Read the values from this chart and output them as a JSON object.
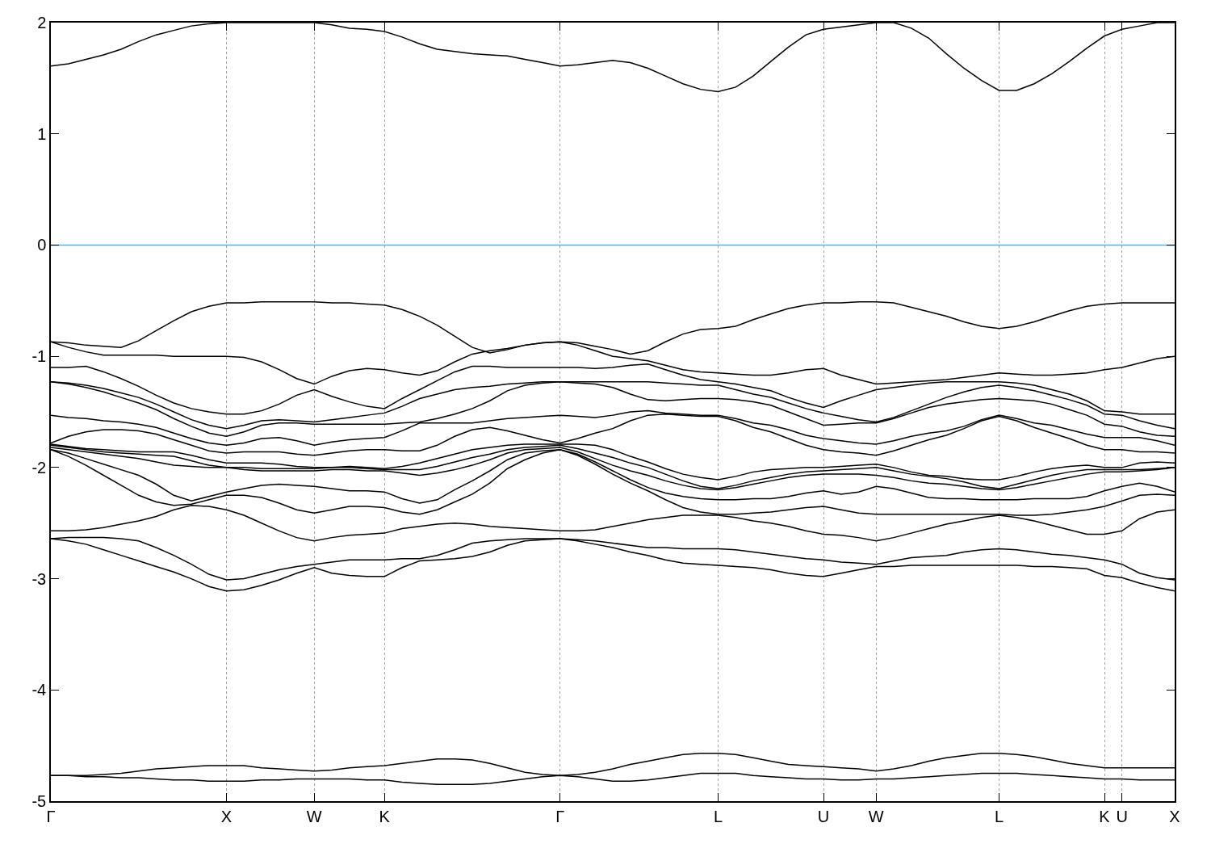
{
  "chart_data": {
    "type": "line",
    "categories": [
      "Γ",
      null,
      null,
      null,
      null,
      null,
      null,
      null,
      null,
      null,
      "X",
      null,
      null,
      null,
      null,
      "W",
      null,
      null,
      null,
      "K",
      null,
      null,
      null,
      null,
      null,
      null,
      null,
      null,
      null,
      "Γ",
      null,
      null,
      null,
      null,
      null,
      null,
      null,
      null,
      "L",
      null,
      null,
      null,
      null,
      null,
      "U",
      null,
      null,
      "W",
      null,
      null,
      null,
      null,
      null,
      null,
      "L",
      null,
      null,
      null,
      null,
      null,
      "K",
      "U",
      null,
      null,
      "X"
    ],
    "ylim": [
      -5,
      2
    ],
    "yticks": [
      -5,
      -4,
      -3,
      -2,
      -1,
      0,
      1,
      2
    ],
    "grid": "x",
    "ref_lines": [
      {
        "axis": "y",
        "value": 0,
        "color": "#56b4e9"
      }
    ],
    "series": [
      {
        "color": "#000000",
        "values": [
          1.61,
          1.63,
          1.67,
          1.71,
          1.76,
          1.83,
          1.89,
          1.93,
          1.97,
          1.99,
          2.0,
          2.0,
          2.0,
          2.0,
          2.0,
          2.0,
          1.98,
          1.95,
          1.94,
          1.92,
          1.87,
          1.81,
          1.76,
          1.74,
          1.72,
          1.71,
          1.7,
          1.67,
          1.64,
          1.61,
          1.62,
          1.64,
          1.66,
          1.64,
          1.59,
          1.52,
          1.45,
          1.4,
          1.38,
          1.42,
          1.52,
          1.65,
          1.78,
          1.89,
          1.94,
          1.96,
          1.98,
          2.0,
          2.0,
          1.95,
          1.86,
          1.72,
          1.59,
          1.48,
          1.39,
          1.39,
          1.45,
          1.54,
          1.65,
          1.77,
          1.88,
          1.94,
          1.97,
          2.0,
          2.0
        ]
      },
      {
        "color": "#000000",
        "values": [
          -0.87,
          -0.88,
          -0.9,
          -0.91,
          -0.92,
          -0.86,
          -0.77,
          -0.68,
          -0.6,
          -0.55,
          -0.52,
          -0.52,
          -0.51,
          -0.51,
          -0.51,
          -0.51,
          -0.52,
          -0.52,
          -0.53,
          -0.54,
          -0.58,
          -0.64,
          -0.72,
          -0.82,
          -0.92,
          -0.97,
          -0.94,
          -0.9,
          -0.88,
          -0.87,
          -0.88,
          -0.91,
          -0.94,
          -0.98,
          -0.95,
          -0.87,
          -0.8,
          -0.76,
          -0.75,
          -0.73,
          -0.67,
          -0.62,
          -0.57,
          -0.54,
          -0.52,
          -0.52,
          -0.51,
          -0.51,
          -0.52,
          -0.56,
          -0.6,
          -0.64,
          -0.69,
          -0.73,
          -0.75,
          -0.73,
          -0.69,
          -0.64,
          -0.59,
          -0.55,
          -0.53,
          -0.52,
          -0.52,
          -0.52,
          -0.52
        ]
      },
      {
        "color": "#000000",
        "values": [
          -0.87,
          -0.92,
          -0.96,
          -0.99,
          -0.99,
          -0.99,
          -0.99,
          -1.0,
          -1.0,
          -1.0,
          -1.0,
          -1.01,
          -1.05,
          -1.12,
          -1.2,
          -1.25,
          -1.18,
          -1.13,
          -1.11,
          -1.12,
          -1.15,
          -1.17,
          -1.13,
          -1.05,
          -0.98,
          -0.95,
          -0.93,
          -0.9,
          -0.88,
          -0.87,
          -0.9,
          -0.95,
          -1.0,
          -1.02,
          -1.04,
          -1.08,
          -1.12,
          -1.14,
          -1.15,
          -1.16,
          -1.17,
          -1.17,
          -1.15,
          -1.12,
          -1.11,
          -1.17,
          -1.21,
          -1.25,
          -1.24,
          -1.23,
          -1.22,
          -1.21,
          -1.19,
          -1.17,
          -1.15,
          -1.16,
          -1.17,
          -1.17,
          -1.16,
          -1.15,
          -1.12,
          -1.1,
          -1.06,
          -1.02,
          -1.0
        ]
      },
      {
        "color": "#000000",
        "values": [
          -1.1,
          -1.1,
          -1.09,
          -1.14,
          -1.2,
          -1.27,
          -1.35,
          -1.42,
          -1.47,
          -1.5,
          -1.52,
          -1.52,
          -1.49,
          -1.43,
          -1.35,
          -1.3,
          -1.36,
          -1.41,
          -1.45,
          -1.47,
          -1.38,
          -1.3,
          -1.22,
          -1.14,
          -1.09,
          -1.09,
          -1.1,
          -1.1,
          -1.1,
          -1.1,
          -1.1,
          -1.11,
          -1.1,
          -1.08,
          -1.07,
          -1.12,
          -1.17,
          -1.21,
          -1.23,
          -1.25,
          -1.28,
          -1.31,
          -1.37,
          -1.42,
          -1.46,
          -1.4,
          -1.35,
          -1.3,
          -1.28,
          -1.26,
          -1.24,
          -1.23,
          -1.23,
          -1.23,
          -1.23,
          -1.24,
          -1.26,
          -1.3,
          -1.34,
          -1.4,
          -1.49,
          -1.5,
          -1.52,
          -1.52,
          -1.52
        ]
      },
      {
        "color": "#000000",
        "values": [
          -1.23,
          -1.24,
          -1.26,
          -1.29,
          -1.33,
          -1.37,
          -1.43,
          -1.5,
          -1.57,
          -1.62,
          -1.65,
          -1.62,
          -1.58,
          -1.57,
          -1.58,
          -1.59,
          -1.57,
          -1.55,
          -1.53,
          -1.51,
          -1.45,
          -1.38,
          -1.34,
          -1.3,
          -1.28,
          -1.27,
          -1.25,
          -1.24,
          -1.23,
          -1.23,
          -1.23,
          -1.23,
          -1.23,
          -1.23,
          -1.23,
          -1.24,
          -1.25,
          -1.26,
          -1.26,
          -1.3,
          -1.34,
          -1.37,
          -1.42,
          -1.47,
          -1.51,
          -1.54,
          -1.57,
          -1.59,
          -1.55,
          -1.49,
          -1.43,
          -1.37,
          -1.32,
          -1.28,
          -1.26,
          -1.28,
          -1.31,
          -1.35,
          -1.39,
          -1.44,
          -1.52,
          -1.53,
          -1.58,
          -1.62,
          -1.65
        ]
      },
      {
        "color": "#000000",
        "values": [
          -1.23,
          -1.25,
          -1.28,
          -1.32,
          -1.37,
          -1.42,
          -1.48,
          -1.56,
          -1.63,
          -1.69,
          -1.72,
          -1.68,
          -1.62,
          -1.6,
          -1.6,
          -1.61,
          -1.61,
          -1.61,
          -1.61,
          -1.61,
          -1.6,
          -1.59,
          -1.56,
          -1.52,
          -1.47,
          -1.4,
          -1.31,
          -1.26,
          -1.24,
          -1.23,
          -1.24,
          -1.25,
          -1.28,
          -1.34,
          -1.39,
          -1.4,
          -1.39,
          -1.38,
          -1.38,
          -1.39,
          -1.41,
          -1.44,
          -1.5,
          -1.56,
          -1.62,
          -1.61,
          -1.6,
          -1.6,
          -1.56,
          -1.51,
          -1.46,
          -1.43,
          -1.41,
          -1.39,
          -1.38,
          -1.39,
          -1.4,
          -1.43,
          -1.48,
          -1.53,
          -1.61,
          -1.63,
          -1.68,
          -1.71,
          -1.72
        ]
      },
      {
        "color": "#000000",
        "values": [
          -1.53,
          -1.55,
          -1.56,
          -1.58,
          -1.59,
          -1.61,
          -1.64,
          -1.69,
          -1.74,
          -1.78,
          -1.8,
          -1.78,
          -1.74,
          -1.73,
          -1.76,
          -1.8,
          -1.77,
          -1.75,
          -1.74,
          -1.73,
          -1.67,
          -1.6,
          -1.6,
          -1.6,
          -1.6,
          -1.58,
          -1.56,
          -1.55,
          -1.54,
          -1.53,
          -1.54,
          -1.55,
          -1.53,
          -1.5,
          -1.49,
          -1.51,
          -1.52,
          -1.53,
          -1.53,
          -1.56,
          -1.6,
          -1.62,
          -1.66,
          -1.71,
          -1.74,
          -1.76,
          -1.78,
          -1.79,
          -1.76,
          -1.72,
          -1.69,
          -1.67,
          -1.63,
          -1.57,
          -1.53,
          -1.56,
          -1.6,
          -1.62,
          -1.66,
          -1.7,
          -1.73,
          -1.73,
          -1.73,
          -1.76,
          -1.8
        ]
      },
      {
        "color": "#000000",
        "values": [
          -1.78,
          -1.72,
          -1.68,
          -1.66,
          -1.66,
          -1.67,
          -1.7,
          -1.75,
          -1.8,
          -1.85,
          -1.87,
          -1.86,
          -1.86,
          -1.86,
          -1.88,
          -1.89,
          -1.87,
          -1.85,
          -1.84,
          -1.84,
          -1.85,
          -1.85,
          -1.8,
          -1.72,
          -1.66,
          -1.64,
          -1.67,
          -1.71,
          -1.75,
          -1.78,
          -1.74,
          -1.69,
          -1.65,
          -1.58,
          -1.53,
          -1.52,
          -1.53,
          -1.54,
          -1.54,
          -1.58,
          -1.64,
          -1.68,
          -1.74,
          -1.8,
          -1.84,
          -1.86,
          -1.87,
          -1.89,
          -1.85,
          -1.8,
          -1.75,
          -1.71,
          -1.65,
          -1.58,
          -1.54,
          -1.58,
          -1.64,
          -1.69,
          -1.74,
          -1.8,
          -1.84,
          -1.84,
          -1.86,
          -1.86,
          -1.87
        ]
      },
      {
        "color": "#000000",
        "values": [
          -1.79,
          -1.81,
          -1.83,
          -1.84,
          -1.85,
          -1.86,
          -1.86,
          -1.86,
          -1.89,
          -1.93,
          -1.96,
          -1.96,
          -1.96,
          -1.97,
          -1.99,
          -2.0,
          -2.0,
          -1.99,
          -2.0,
          -2.01,
          -1.99,
          -1.96,
          -1.92,
          -1.88,
          -1.84,
          -1.82,
          -1.8,
          -1.79,
          -1.79,
          -1.79,
          -1.79,
          -1.8,
          -1.84,
          -1.9,
          -1.95,
          -2.01,
          -2.06,
          -2.09,
          -2.11,
          -2.08,
          -2.04,
          -2.02,
          -2.01,
          -2.0,
          -2.0,
          -1.99,
          -1.98,
          -1.97,
          -2.0,
          -2.04,
          -2.07,
          -2.08,
          -2.1,
          -2.11,
          -2.11,
          -2.08,
          -2.04,
          -2.01,
          -1.99,
          -1.98,
          -2.0,
          -2.0,
          -1.96,
          -1.95,
          -1.96
        ]
      },
      {
        "color": "#000000",
        "values": [
          -1.8,
          -1.82,
          -1.84,
          -1.86,
          -1.87,
          -1.88,
          -1.89,
          -1.9,
          -1.94,
          -1.98,
          -2.0,
          -2.0,
          -2.01,
          -2.01,
          -2.01,
          -2.01,
          -2.0,
          -2.0,
          -2.01,
          -2.02,
          -2.02,
          -2.02,
          -1.99,
          -1.95,
          -1.91,
          -1.88,
          -1.84,
          -1.82,
          -1.81,
          -1.8,
          -1.83,
          -1.87,
          -1.91,
          -1.96,
          -2.0,
          -2.06,
          -2.12,
          -2.17,
          -2.19,
          -2.16,
          -2.12,
          -2.09,
          -2.06,
          -2.04,
          -2.03,
          -2.02,
          -2.01,
          -2.0,
          -2.03,
          -2.06,
          -2.08,
          -2.1,
          -2.13,
          -2.17,
          -2.19,
          -2.15,
          -2.11,
          -2.07,
          -2.04,
          -2.02,
          -2.02,
          -2.02,
          -2.02,
          -2.01,
          -2.0
        ]
      },
      {
        "color": "#000000",
        "values": [
          -1.82,
          -1.84,
          -1.86,
          -1.88,
          -1.9,
          -1.92,
          -1.95,
          -1.98,
          -1.99,
          -2.0,
          -2.0,
          -2.02,
          -2.03,
          -2.03,
          -2.03,
          -2.03,
          -2.02,
          -2.02,
          -2.03,
          -2.03,
          -2.05,
          -2.07,
          -2.05,
          -2.02,
          -1.98,
          -1.93,
          -1.87,
          -1.84,
          -1.83,
          -1.82,
          -1.86,
          -1.92,
          -1.98,
          -2.03,
          -2.07,
          -2.12,
          -2.16,
          -2.19,
          -2.2,
          -2.18,
          -2.15,
          -2.12,
          -2.09,
          -2.07,
          -2.06,
          -2.06,
          -2.06,
          -2.07,
          -2.09,
          -2.12,
          -2.14,
          -2.15,
          -2.17,
          -2.19,
          -2.2,
          -2.18,
          -2.15,
          -2.12,
          -2.09,
          -2.06,
          -2.04,
          -2.04,
          -2.03,
          -2.02,
          -2.0
        ]
      },
      {
        "color": "#000000",
        "values": [
          -1.84,
          -1.87,
          -1.92,
          -1.97,
          -2.02,
          -2.07,
          -2.15,
          -2.25,
          -2.3,
          -2.26,
          -2.22,
          -2.19,
          -2.16,
          -2.15,
          -2.16,
          -2.17,
          -2.19,
          -2.21,
          -2.21,
          -2.22,
          -2.28,
          -2.32,
          -2.29,
          -2.2,
          -2.12,
          -2.03,
          -1.93,
          -1.87,
          -1.85,
          -1.84,
          -1.88,
          -1.95,
          -2.03,
          -2.11,
          -2.18,
          -2.23,
          -2.26,
          -2.28,
          -2.29,
          -2.29,
          -2.28,
          -2.28,
          -2.26,
          -2.23,
          -2.21,
          -2.24,
          -2.22,
          -2.17,
          -2.19,
          -2.23,
          -2.27,
          -2.28,
          -2.28,
          -2.29,
          -2.29,
          -2.29,
          -2.28,
          -2.28,
          -2.28,
          -2.26,
          -2.21,
          -2.17,
          -2.14,
          -2.17,
          -2.22
        ]
      },
      {
        "color": "#000000",
        "values": [
          -1.84,
          -1.9,
          -1.98,
          -2.07,
          -2.16,
          -2.25,
          -2.31,
          -2.34,
          -2.33,
          -2.29,
          -2.25,
          -2.25,
          -2.27,
          -2.32,
          -2.38,
          -2.41,
          -2.38,
          -2.35,
          -2.35,
          -2.36,
          -2.4,
          -2.42,
          -2.38,
          -2.31,
          -2.24,
          -2.14,
          -2.01,
          -1.93,
          -1.87,
          -1.84,
          -1.89,
          -1.97,
          -2.06,
          -2.14,
          -2.21,
          -2.29,
          -2.36,
          -2.4,
          -2.42,
          -2.42,
          -2.41,
          -2.4,
          -2.38,
          -2.36,
          -2.35,
          -2.38,
          -2.41,
          -2.42,
          -2.42,
          -2.42,
          -2.42,
          -2.42,
          -2.42,
          -2.42,
          -2.42,
          -2.43,
          -2.43,
          -2.42,
          -2.4,
          -2.38,
          -2.35,
          -2.3,
          -2.25,
          -2.24,
          -2.25
        ]
      },
      {
        "color": "#000000",
        "values": [
          -2.57,
          -2.57,
          -2.56,
          -2.54,
          -2.51,
          -2.48,
          -2.44,
          -2.38,
          -2.34,
          -2.35,
          -2.38,
          -2.43,
          -2.5,
          -2.57,
          -2.63,
          -2.66,
          -2.63,
          -2.61,
          -2.6,
          -2.59,
          -2.55,
          -2.53,
          -2.51,
          -2.5,
          -2.51,
          -2.53,
          -2.54,
          -2.55,
          -2.56,
          -2.57,
          -2.57,
          -2.56,
          -2.53,
          -2.5,
          -2.47,
          -2.45,
          -2.43,
          -2.43,
          -2.43,
          -2.45,
          -2.48,
          -2.5,
          -2.53,
          -2.57,
          -2.6,
          -2.61,
          -2.63,
          -2.66,
          -2.63,
          -2.59,
          -2.55,
          -2.51,
          -2.48,
          -2.45,
          -2.43,
          -2.45,
          -2.48,
          -2.52,
          -2.56,
          -2.6,
          -2.6,
          -2.57,
          -2.46,
          -2.4,
          -2.38
        ]
      },
      {
        "color": "#000000",
        "values": [
          -2.64,
          -2.63,
          -2.63,
          -2.63,
          -2.64,
          -2.66,
          -2.72,
          -2.79,
          -2.87,
          -2.96,
          -3.01,
          -3.0,
          -2.96,
          -2.92,
          -2.89,
          -2.87,
          -2.85,
          -2.83,
          -2.83,
          -2.83,
          -2.82,
          -2.82,
          -2.79,
          -2.74,
          -2.68,
          -2.66,
          -2.65,
          -2.64,
          -2.64,
          -2.64,
          -2.65,
          -2.66,
          -2.68,
          -2.7,
          -2.72,
          -2.72,
          -2.73,
          -2.73,
          -2.73,
          -2.74,
          -2.76,
          -2.78,
          -2.8,
          -2.82,
          -2.83,
          -2.85,
          -2.86,
          -2.87,
          -2.84,
          -2.81,
          -2.8,
          -2.79,
          -2.76,
          -2.74,
          -2.73,
          -2.74,
          -2.76,
          -2.78,
          -2.79,
          -2.81,
          -2.83,
          -2.87,
          -2.95,
          -2.99,
          -3.01
        ]
      },
      {
        "color": "#000000",
        "values": [
          -2.64,
          -2.66,
          -2.69,
          -2.74,
          -2.79,
          -2.84,
          -2.89,
          -2.94,
          -3.0,
          -3.07,
          -3.11,
          -3.1,
          -3.06,
          -3.01,
          -2.95,
          -2.9,
          -2.95,
          -2.97,
          -2.98,
          -2.98,
          -2.9,
          -2.84,
          -2.83,
          -2.82,
          -2.8,
          -2.76,
          -2.7,
          -2.66,
          -2.65,
          -2.64,
          -2.66,
          -2.69,
          -2.72,
          -2.76,
          -2.79,
          -2.83,
          -2.86,
          -2.87,
          -2.88,
          -2.89,
          -2.9,
          -2.92,
          -2.95,
          -2.97,
          -2.98,
          -2.95,
          -2.92,
          -2.89,
          -2.89,
          -2.88,
          -2.88,
          -2.88,
          -2.88,
          -2.88,
          -2.88,
          -2.88,
          -2.89,
          -2.89,
          -2.9,
          -2.91,
          -2.97,
          -2.99,
          -3.04,
          -3.08,
          -3.11
        ]
      },
      {
        "color": "#000000",
        "values": [
          -4.77,
          -4.77,
          -4.77,
          -4.76,
          -4.75,
          -4.73,
          -4.71,
          -4.7,
          -4.69,
          -4.68,
          -4.68,
          -4.68,
          -4.7,
          -4.71,
          -4.72,
          -4.73,
          -4.72,
          -4.7,
          -4.69,
          -4.68,
          -4.66,
          -4.64,
          -4.62,
          -4.62,
          -4.63,
          -4.66,
          -4.7,
          -4.74,
          -4.76,
          -4.77,
          -4.76,
          -4.74,
          -4.71,
          -4.67,
          -4.64,
          -4.61,
          -4.58,
          -4.57,
          -4.57,
          -4.58,
          -4.61,
          -4.64,
          -4.67,
          -4.68,
          -4.69,
          -4.7,
          -4.71,
          -4.73,
          -4.71,
          -4.68,
          -4.64,
          -4.61,
          -4.59,
          -4.57,
          -4.57,
          -4.58,
          -4.6,
          -4.63,
          -4.66,
          -4.68,
          -4.7,
          -4.7,
          -4.7,
          -4.7,
          -4.7
        ]
      },
      {
        "color": "#000000",
        "values": [
          -4.77,
          -4.77,
          -4.78,
          -4.78,
          -4.79,
          -4.79,
          -4.8,
          -4.81,
          -4.81,
          -4.82,
          -4.82,
          -4.82,
          -4.81,
          -4.81,
          -4.8,
          -4.8,
          -4.8,
          -4.8,
          -4.81,
          -4.81,
          -4.83,
          -4.84,
          -4.85,
          -4.85,
          -4.85,
          -4.84,
          -4.82,
          -4.8,
          -4.78,
          -4.77,
          -4.78,
          -4.8,
          -4.82,
          -4.82,
          -4.81,
          -4.79,
          -4.77,
          -4.75,
          -4.75,
          -4.75,
          -4.77,
          -4.78,
          -4.79,
          -4.8,
          -4.8,
          -4.81,
          -4.81,
          -4.8,
          -4.8,
          -4.79,
          -4.78,
          -4.77,
          -4.76,
          -4.75,
          -4.75,
          -4.75,
          -4.76,
          -4.77,
          -4.78,
          -4.79,
          -4.8,
          -4.8,
          -4.81,
          -4.81,
          -4.81
        ]
      }
    ]
  }
}
